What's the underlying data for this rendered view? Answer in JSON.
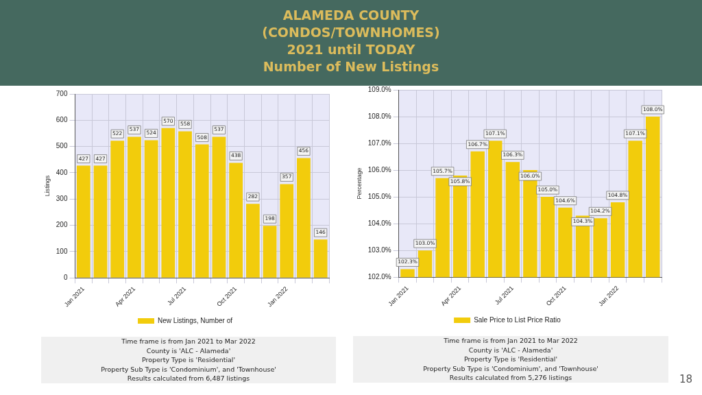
{
  "chart_data": [
    {
      "type": "bar",
      "title": "ALAMEDA COUNTY\n(CONDOS/TOWNHOMES)\n2021 until TODAY\nNumber of New Listings",
      "ylabel": "Listings",
      "categories": [
        "Jan 2021",
        null,
        null,
        "Apr 2021",
        null,
        null,
        "Jul 2021",
        null,
        null,
        "Oct 2021",
        null,
        null,
        "Jan 2022",
        null,
        null
      ],
      "series": [
        {
          "name": "New Listings, Number of",
          "color": "#f2cc0c",
          "values": [
            427,
            427,
            522,
            537,
            524,
            570,
            558,
            508,
            537,
            438,
            282,
            198,
            357,
            456,
            146
          ]
        }
      ],
      "ylim": [
        0,
        700
      ],
      "yticks": [
        0,
        100,
        200,
        300,
        400,
        500,
        600,
        700
      ],
      "grid": true,
      "legend": "bottom",
      "data_labels": true,
      "annotations": [
        "Time frame is from Jan 2021 to Mar 2022",
        "County is 'ALC - Alameda'",
        "Property Type is 'Residential'",
        "Property Sub Type is 'Condominium', and 'Townhouse'",
        "Results calculated from 6,487 listings"
      ]
    },
    {
      "type": "bar",
      "ylabel": "Percentage",
      "categories": [
        "Jan 2021",
        null,
        null,
        "Apr 2021",
        null,
        null,
        "Jul 2021",
        null,
        null,
        "Oct 2021",
        null,
        null,
        "Jan 2022",
        null,
        null
      ],
      "series": [
        {
          "name": "Sale Price to List Price Ratio",
          "color": "#f2cc0c",
          "values": [
            102.3,
            103.0,
            105.7,
            105.8,
            106.7,
            107.1,
            106.3,
            106.0,
            105.0,
            104.6,
            104.3,
            104.2,
            104.8,
            107.1,
            108.0
          ],
          "value_labels": [
            "102.3%",
            "103.0%",
            "105.7%",
            "105.8%",
            "106.7%",
            "107.1%",
            "106.3%",
            "106.0%",
            "105.0%",
            "104.6%",
            "104.3%",
            "104.2%",
            "104.8%",
            "107.1%",
            "108.0%"
          ]
        }
      ],
      "ylim": [
        102,
        109
      ],
      "yticks": [
        {
          "value": 102,
          "label": "102.0%"
        },
        {
          "value": 103,
          "label": "103.0%"
        },
        {
          "value": 104,
          "label": "104.0%"
        },
        {
          "value": 105,
          "label": "105.0%"
        },
        {
          "value": 106,
          "label": "106.0%"
        },
        {
          "value": 107,
          "label": "107.0%"
        },
        {
          "value": 108,
          "label": "108.0%"
        },
        {
          "value": 109,
          "label": "109.0%"
        }
      ],
      "grid": true,
      "legend": "bottom",
      "annotations": [
        "Time frame is from Jan 2021 to Mar 2022",
        "County is 'ALC - Alameda'",
        "Property Type is 'Residential'",
        "Property Sub Type is 'Condominium', and 'Townhouse'",
        "Results calculated from 5,276 listings",
        "18"
      ]
    }
  ]
}
